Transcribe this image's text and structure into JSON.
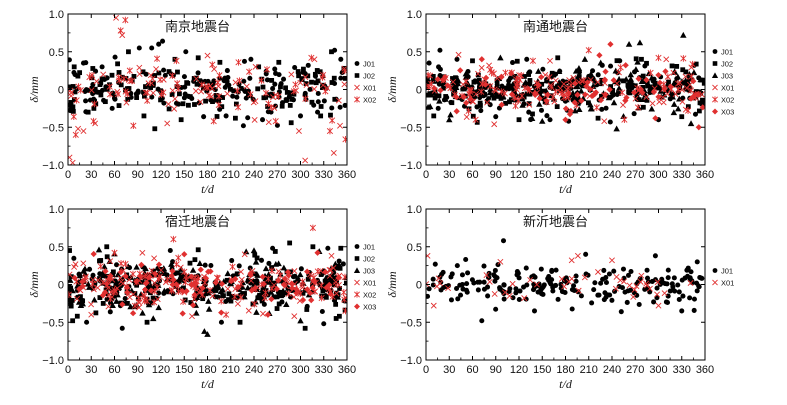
{
  "chart_data": [
    {
      "type": "scatter",
      "title": "南京地震台",
      "xlabel": "t/d",
      "ylabel": "δ/mm",
      "xlim": [
        0,
        360
      ],
      "ylim": [
        -1.0,
        1.0
      ],
      "xticks": [
        0,
        30,
        60,
        90,
        120,
        150,
        180,
        210,
        240,
        270,
        300,
        330,
        360
      ],
      "xtick_labels": [
        "0",
        "30",
        "60",
        "90",
        "120",
        "150",
        "180",
        "210",
        "240",
        "270",
        "300",
        "330",
        "360"
      ],
      "yticks": [
        -1.0,
        -0.5,
        0,
        0.5,
        1.0
      ],
      "ytick_labels": [
        "−1.0",
        "−0.5",
        "0",
        "0.5",
        "1.0"
      ],
      "legend_position": "right",
      "series": [
        {
          "name": "J01",
          "marker": "circle",
          "color": "#000000",
          "n": 130,
          "spread": 0.16,
          "seed": 11,
          "x": [
            3,
            20,
            44,
            57,
            92,
            108,
            117,
            122,
            152,
            175,
            204,
            236,
            251,
            262,
            300,
            310,
            322,
            344,
            352
          ],
          "y": [
            -0.28,
            0.35,
            0.3,
            -0.25,
            0.55,
            0.55,
            0.6,
            0.64,
            0.5,
            -0.36,
            -0.35,
            0.4,
            -0.4,
            -0.3,
            -0.35,
            0.32,
            -0.3,
            0.52,
            0.4
          ]
        },
        {
          "name": "J02",
          "marker": "square",
          "color": "#000000",
          "n": 130,
          "spread": 0.16,
          "seed": 23,
          "x": [
            8,
            26,
            64,
            78,
            98,
            112,
            138,
            146,
            168,
            196,
            216,
            246,
            272,
            288,
            326,
            340,
            356
          ],
          "y": [
            0.3,
            -0.3,
            0.34,
            0.5,
            -0.35,
            -0.52,
            0.4,
            -0.4,
            0.42,
            0.36,
            -0.38,
            0.3,
            0.36,
            -0.44,
            -0.35,
            0.5,
            0.28
          ]
        },
        {
          "name": "X01",
          "marker": "x",
          "color": "#e03030",
          "n": 55,
          "spread": 0.16,
          "seed": 37,
          "x": [
            2,
            6,
            13,
            20,
            35,
            62,
            70,
            128,
            180,
            242,
            298,
            306,
            318,
            343,
            351
          ],
          "y": [
            -0.9,
            -0.97,
            -0.52,
            -0.55,
            -0.45,
            0.95,
            0.72,
            -0.45,
            0.45,
            0.3,
            -0.55,
            -0.94,
            0.4,
            -0.84,
            -0.48
          ]
        },
        {
          "name": "X02",
          "marker": "asterisk",
          "color": "#e03030",
          "n": 55,
          "spread": 0.16,
          "seed": 41,
          "x": [
            10,
            33,
            68,
            74,
            140,
            188,
            220,
            268,
            314,
            338,
            358
          ],
          "y": [
            -0.6,
            -0.42,
            0.78,
            0.92,
            0.38,
            -0.42,
            0.36,
            -0.42,
            0.42,
            -0.55,
            -0.66
          ]
        }
      ]
    },
    {
      "type": "scatter",
      "title": "南通地震台",
      "xlabel": "t/d",
      "ylabel": "δ/mm",
      "xlim": [
        0,
        360
      ],
      "ylim": [
        -1.0,
        1.0
      ],
      "xticks": [
        0,
        30,
        60,
        90,
        120,
        150,
        180,
        210,
        240,
        270,
        300,
        330,
        360
      ],
      "xtick_labels": [
        "0",
        "30",
        "60",
        "90",
        "120",
        "150",
        "180",
        "210",
        "240",
        "270",
        "300",
        "330",
        "360"
      ],
      "yticks": [
        -1.0,
        -0.5,
        0,
        0.5,
        1.0
      ],
      "ytick_labels": [
        "−1.0",
        "−0.5",
        "0",
        "0.5",
        "1.0"
      ],
      "legend_position": "right",
      "series": [
        {
          "name": "J01",
          "marker": "circle",
          "color": "#000000",
          "n": 150,
          "spread": 0.15,
          "seed": 53,
          "x": [
            4,
            18,
            40,
            90,
            130,
            184,
            250,
            300,
            346
          ],
          "y": [
            0.35,
            0.52,
            0.4,
            -0.36,
            0.4,
            -0.42,
            0.38,
            -0.4,
            0.32
          ]
        },
        {
          "name": "J02",
          "marker": "square",
          "color": "#000000",
          "n": 150,
          "spread": 0.15,
          "seed": 67,
          "x": [
            10,
            60,
            120,
            170,
            222,
            278,
            330
          ],
          "y": [
            -0.35,
            0.38,
            -0.4,
            0.42,
            -0.38,
            0.4,
            -0.36
          ]
        },
        {
          "name": "J03",
          "marker": "triangle",
          "color": "#000000",
          "n": 150,
          "spread": 0.16,
          "seed": 71,
          "x": [
            30,
            96,
            150,
            205,
            246,
            262,
            276,
            332,
            342
          ],
          "y": [
            -0.4,
            0.42,
            -0.42,
            0.4,
            -0.52,
            0.6,
            0.62,
            0.72,
            -0.45
          ]
        },
        {
          "name": "X01",
          "marker": "x",
          "color": "#e03030",
          "n": 70,
          "spread": 0.14,
          "seed": 83,
          "x": [
            42,
            88,
            160,
            230,
            310
          ],
          "y": [
            0.46,
            -0.46,
            0.38,
            -0.42,
            0.4
          ]
        },
        {
          "name": "X02",
          "marker": "asterisk",
          "color": "#e03030",
          "n": 70,
          "spread": 0.14,
          "seed": 97,
          "x": [
            64,
            138,
            210,
            256,
            300
          ],
          "y": [
            -0.4,
            0.38,
            0.52,
            -0.4,
            0.42
          ]
        },
        {
          "name": "X03",
          "marker": "diamond",
          "color": "#e03030",
          "n": 70,
          "spread": 0.14,
          "seed": 101,
          "x": [
            72,
            180,
            238,
            296,
            352
          ],
          "y": [
            0.4,
            -0.4,
            0.6,
            -0.38,
            -0.5
          ]
        }
      ]
    },
    {
      "type": "scatter",
      "title": "宿迁地震台",
      "xlabel": "t/d",
      "ylabel": "δ/mm",
      "xlim": [
        0,
        360
      ],
      "ylim": [
        -1.0,
        1.0
      ],
      "xticks": [
        0,
        30,
        60,
        90,
        120,
        150,
        180,
        210,
        240,
        270,
        300,
        330,
        360
      ],
      "xtick_labels": [
        "0",
        "30",
        "60",
        "90",
        "120",
        "150",
        "180",
        "210",
        "240",
        "270",
        "300",
        "330",
        "360"
      ],
      "yticks": [
        -1.0,
        -0.5,
        0,
        0.5,
        1.0
      ],
      "ytick_labels": [
        "−1.0",
        "−0.5",
        "0",
        "0.5",
        "1.0"
      ],
      "legend_position": "right",
      "series": [
        {
          "name": "J01",
          "marker": "circle",
          "color": "#000000",
          "n": 150,
          "spread": 0.17,
          "seed": 113,
          "x": [
            24,
            70,
            132,
            198,
            264,
            330
          ],
          "y": [
            -0.5,
            -0.58,
            0.45,
            -0.5,
            0.48,
            -0.52
          ]
        },
        {
          "name": "J02",
          "marker": "square",
          "color": "#000000",
          "n": 150,
          "spread": 0.17,
          "seed": 127,
          "x": [
            2,
            6,
            12,
            50,
            102,
            168,
            222,
            286,
            306,
            316,
            346,
            352
          ],
          "y": [
            0.45,
            -0.48,
            -0.42,
            0.5,
            -0.5,
            0.46,
            -0.5,
            0.55,
            -0.58,
            0.5,
            -0.45,
            0.48
          ]
        },
        {
          "name": "J03",
          "marker": "triangle",
          "color": "#000000",
          "n": 150,
          "spread": 0.17,
          "seed": 131,
          "x": [
            40,
            110,
            176,
            180,
            240,
            300
          ],
          "y": [
            0.46,
            -0.45,
            -0.62,
            -0.66,
            0.45,
            -0.48
          ]
        },
        {
          "name": "X01",
          "marker": "x",
          "color": "#e03030",
          "n": 100,
          "spread": 0.15,
          "seed": 139,
          "x": [
            30,
            96,
            160,
            228,
            292,
            340
          ],
          "y": [
            -0.4,
            0.42,
            -0.42,
            0.4,
            -0.42,
            0.38
          ]
        },
        {
          "name": "X02",
          "marker": "asterisk",
          "color": "#e03030",
          "n": 80,
          "spread": 0.15,
          "seed": 149,
          "x": [
            60,
            136,
            204,
            316,
            358
          ],
          "y": [
            0.42,
            0.6,
            -0.4,
            0.75,
            -0.35
          ]
        },
        {
          "name": "X03",
          "marker": "diamond",
          "color": "#e03030",
          "n": 80,
          "spread": 0.15,
          "seed": 151,
          "x": [
            84,
            150,
            258,
            322
          ],
          "y": [
            -0.38,
            0.4,
            -0.4,
            0.42
          ]
        }
      ]
    },
    {
      "type": "scatter",
      "title": "新沂地震台",
      "xlabel": "t/d",
      "ylabel": "δ/mm",
      "xlim": [
        0,
        360
      ],
      "ylim": [
        -1.0,
        1.0
      ],
      "xticks": [
        0,
        30,
        60,
        90,
        120,
        150,
        180,
        210,
        240,
        270,
        300,
        330,
        360
      ],
      "xtick_labels": [
        "0",
        "30",
        "60",
        "90",
        "120",
        "150",
        "180",
        "210",
        "240",
        "270",
        "300",
        "330",
        "360"
      ],
      "yticks": [
        -1.0,
        -0.5,
        0,
        0.5,
        1.0
      ],
      "ytick_labels": [
        "−1.0",
        "−0.5",
        "0",
        "0.5",
        "1.0"
      ],
      "legend_position": "right",
      "series": [
        {
          "name": "J01",
          "marker": "circle",
          "color": "#000000",
          "n": 210,
          "spread": 0.13,
          "seed": 163,
          "x": [
            72,
            100,
            140,
            206,
            252,
            296,
            330,
            350
          ],
          "y": [
            -0.48,
            0.58,
            -0.35,
            0.4,
            -0.36,
            0.38,
            -0.35,
            0.3
          ]
        },
        {
          "name": "X01",
          "marker": "x",
          "color": "#e03030",
          "n": 38,
          "spread": 0.12,
          "seed": 173,
          "x": [
            2,
            10,
            96,
            188,
            196,
            240,
            300
          ],
          "y": [
            0.38,
            -0.28,
            0.3,
            0.32,
            0.38,
            0.32,
            -0.28
          ]
        }
      ]
    }
  ]
}
